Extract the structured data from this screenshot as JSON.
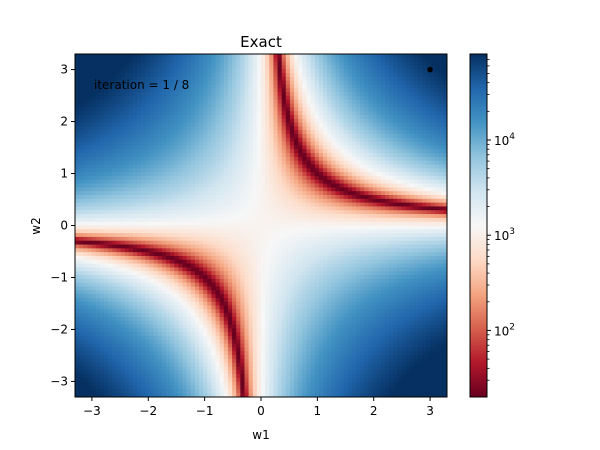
{
  "chart_data": {
    "type": "heatmap",
    "title": "Exact",
    "xlabel": "w1",
    "ylabel": "w2",
    "xlim": [
      -3.3,
      3.3
    ],
    "ylim": [
      -3.3,
      3.3
    ],
    "x_ticks": [
      -3,
      -2,
      -1,
      0,
      1,
      2,
      3
    ],
    "y_ticks": [
      -3,
      -2,
      -1,
      0,
      1,
      2,
      3
    ],
    "x_tick_labels": [
      "−3",
      "−2",
      "−1",
      "0",
      "1",
      "2",
      "3"
    ],
    "y_tick_labels": [
      "−3",
      "−2",
      "−1",
      "0",
      "1",
      "2",
      "3"
    ],
    "colormap": "RdBu",
    "color_scale": "log",
    "colorbar": {
      "range": [
        20,
        80000
      ],
      "major_ticks": [
        {
          "value": 100,
          "base": "10",
          "exp": "2"
        },
        {
          "value": 1000,
          "base": "10",
          "exp": "3"
        },
        {
          "value": 10000,
          "base": "10",
          "exp": "4"
        }
      ]
    },
    "surface": "(w1*w2 - 1)^2 banded values, low along w1*w2 = 1 (hyperbola), high at corners",
    "annotation": "iteration = 1 / 8",
    "current_point": {
      "w1": 3.0,
      "w2": 3.0
    },
    "grid": false
  }
}
